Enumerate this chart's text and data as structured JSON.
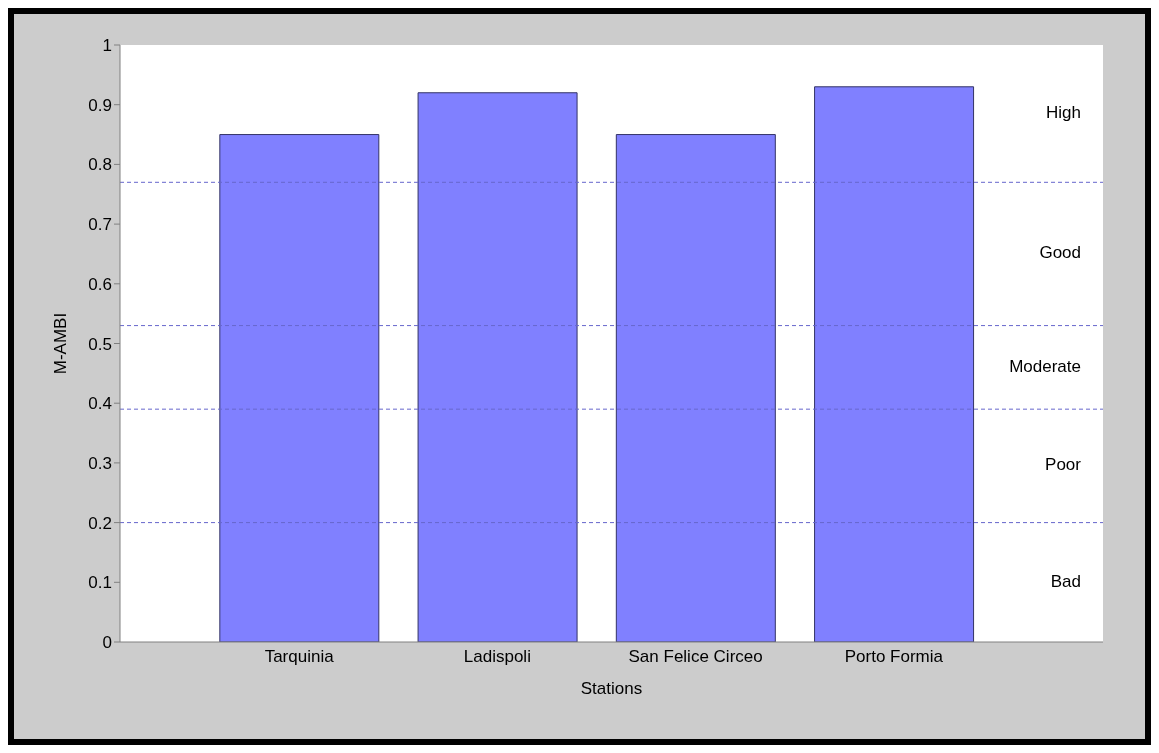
{
  "chart_data": {
    "type": "bar",
    "xlabel": "Stations",
    "ylabel": "M-AMBI",
    "categories": [
      "Tarquinia",
      "Ladispoli",
      "San Felice Circeo",
      "Porto Formia"
    ],
    "values": [
      0.85,
      0.92,
      0.85,
      0.93
    ],
    "color": "#8080ff",
    "ylim": [
      0,
      1
    ],
    "yticks": [
      0,
      0.1,
      0.2,
      0.3,
      0.4,
      0.5,
      0.6,
      0.7,
      0.8,
      0.9,
      1
    ],
    "ref_lines": [
      {
        "axis": "y",
        "value": 0.77,
        "color": "#6666cc",
        "line_style": "dashed"
      },
      {
        "axis": "y",
        "value": 0.53,
        "color": "#6666cc",
        "line_style": "dashed"
      },
      {
        "axis": "y",
        "value": 0.39,
        "color": "#6666cc",
        "line_style": "dashed"
      },
      {
        "axis": "y",
        "value": 0.2,
        "color": "#6666cc",
        "line_style": "dashed"
      }
    ],
    "annotations": [
      "High",
      "Good",
      "Moderate",
      "Poor",
      "Bad"
    ]
  }
}
